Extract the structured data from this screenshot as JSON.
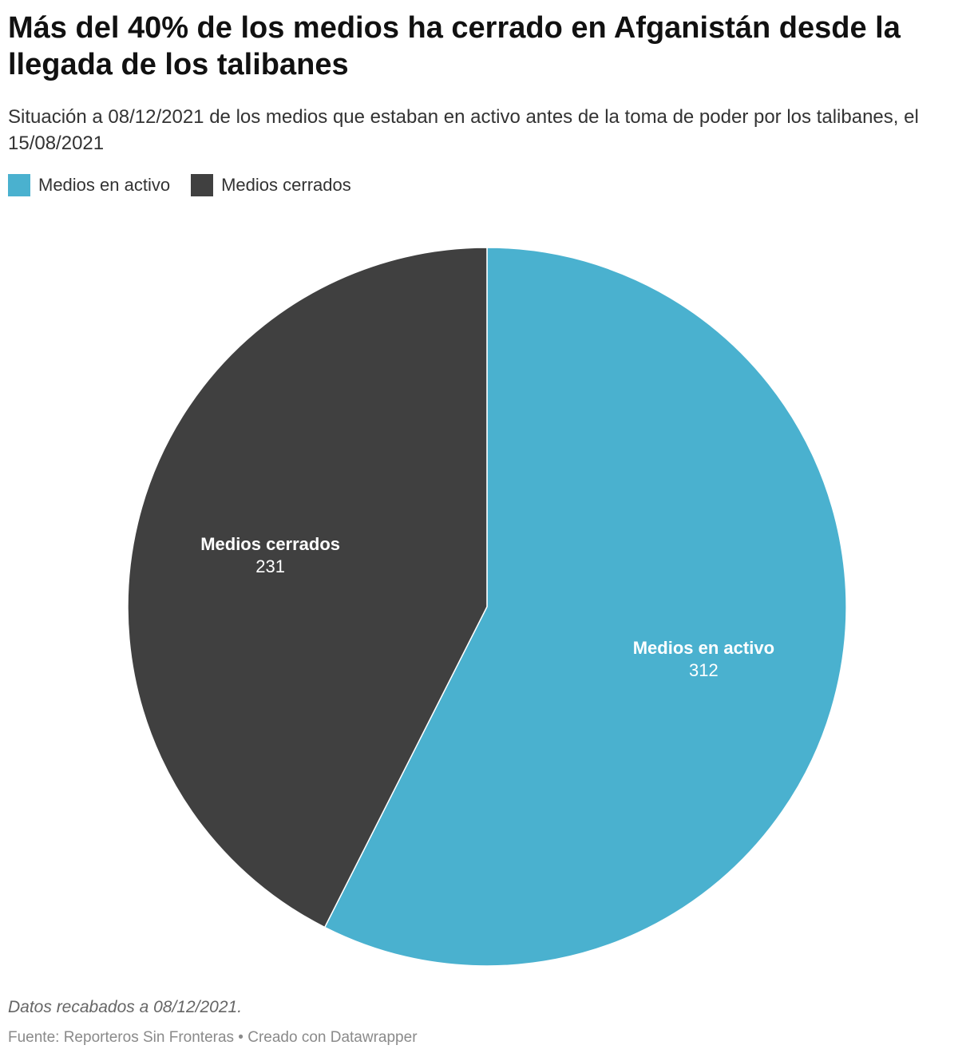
{
  "title": "Más del 40% de los medios ha cerrado en Afganistán desde la llegada de los talibanes",
  "subtitle": "Situación a 08/12/2021 de los medios que estaban en activo antes de la toma de poder por los talibanes, el 15/08/2021",
  "legend": [
    {
      "label": "Medios en activo",
      "color": "#4ab1cf"
    },
    {
      "label": "Medios cerrados",
      "color": "#404040"
    }
  ],
  "chart_data": {
    "type": "pie",
    "slices": [
      {
        "label": "Medios en activo",
        "value": 312,
        "color": "#4ab1cf"
      },
      {
        "label": "Medios cerrados",
        "value": 231,
        "color": "#404040"
      }
    ],
    "start_angle_deg": 0,
    "direction": "clockwise"
  },
  "notes": "Datos recabados a 08/12/2021.",
  "footer": "Fuente: Reporteros Sin Fronteras • Creado con Datawrapper"
}
